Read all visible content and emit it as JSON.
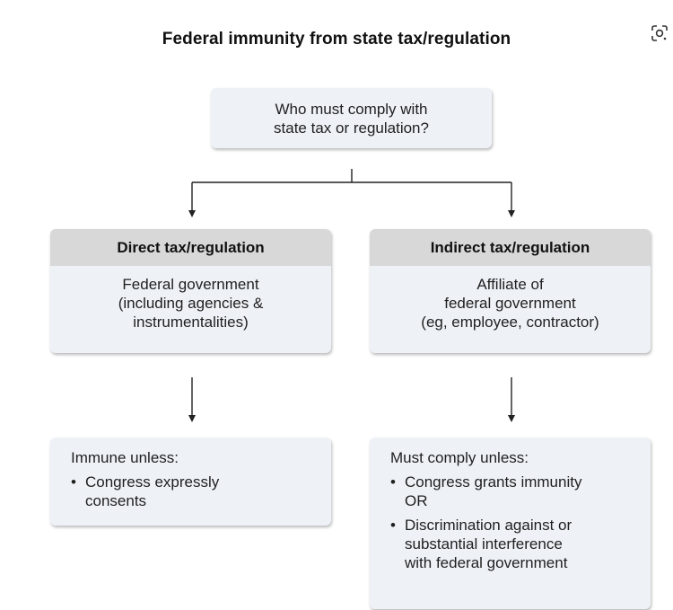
{
  "title": "Federal immunity from state tax/regulation",
  "icons": {
    "lens": "lens-icon"
  },
  "root": {
    "lines": [
      "Who must comply with",
      "state tax or regulation?"
    ]
  },
  "left": {
    "header": "Direct tax/regulation",
    "body_lines": [
      "Federal government",
      "(including agencies &",
      "instrumentalities)"
    ],
    "outcome_intro": "Immune unless:",
    "outcome_bullets": [
      [
        "Congress expressly",
        "consents"
      ]
    ]
  },
  "right": {
    "header": "Indirect tax/regulation",
    "body_lines": [
      "Affiliate of",
      "federal government",
      "(eg, employee, contractor)"
    ],
    "outcome_intro": "Must comply unless:",
    "outcome_bullets": [
      [
        "Congress grants immunity",
        "OR"
      ],
      [
        "Discrimination against or",
        "substantial interference",
        "with federal government"
      ]
    ]
  },
  "bullet_char": "•"
}
